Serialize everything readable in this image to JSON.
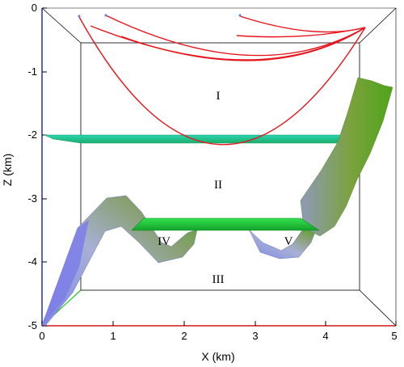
{
  "figure": {
    "x_axis": {
      "label": "X (km)",
      "ticks": [
        "0",
        "1",
        "2",
        "3",
        "4",
        "5"
      ]
    },
    "z_axis": {
      "label": "Z (km)",
      "ticks": [
        "0",
        "-1",
        "-2",
        "-3",
        "-4",
        "-5"
      ]
    },
    "regions": [
      "I",
      "II",
      "III",
      "IV",
      "V"
    ],
    "colors": {
      "ray_paths": "#e8141c",
      "interfaces": "#1fd17a",
      "salt_body": "#9aa3d8",
      "box_edges": "#000000",
      "z_axis_line": "#1e2bd6",
      "x_axis_line": "#d01818",
      "depth_axis_line": "#29c229"
    }
  }
}
